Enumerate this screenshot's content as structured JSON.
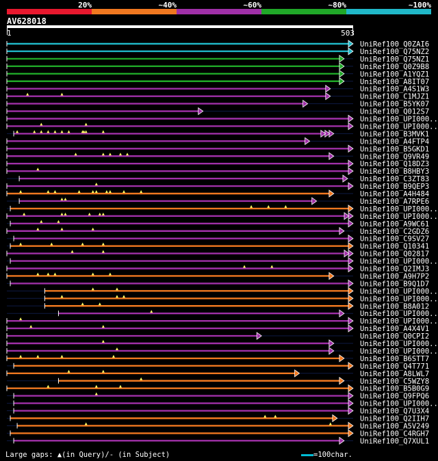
{
  "legend": {
    "segments": [
      {
        "label": "20%",
        "color": "#e8182e"
      },
      {
        "label": "~40%",
        "color": "#f07820"
      },
      {
        "label": "~60%",
        "color": "#a030a8"
      },
      {
        "label": "~80%",
        "color": "#20a828"
      },
      {
        "label": "~100%",
        "color": "#20b8c8"
      }
    ]
  },
  "query": {
    "name": "AV628018",
    "start_label": "1",
    "end_label": "503",
    "length": 503
  },
  "footer": {
    "gaps_text": "Large gaps: ▲(in Query)/- (in Subject)",
    "scale_text": "=100char."
  },
  "hits": [
    {
      "label": "UniRef100_Q0ZAI6",
      "start": 0,
      "end": 503,
      "color": "#20b8c8",
      "heads": 1,
      "gaps": []
    },
    {
      "label": "UniRef100_Q75NZ2",
      "start": 0,
      "end": 503,
      "color": "#20b8c8",
      "heads": 1,
      "gaps": []
    },
    {
      "label": "UniRef100_Q75NZ1",
      "start": 0,
      "end": 490,
      "color": "#20a828",
      "heads": 1,
      "gaps": []
    },
    {
      "label": "UniRef100_Q0Z9B8",
      "start": 0,
      "end": 490,
      "color": "#20a828",
      "heads": 1,
      "gaps": []
    },
    {
      "label": "UniRef100_A1YQZ1",
      "start": 0,
      "end": 490,
      "color": "#20a828",
      "heads": 1,
      "gaps": []
    },
    {
      "label": "UniRef100_A8IT07",
      "start": 0,
      "end": 490,
      "color": "#20a828",
      "heads": 1,
      "gaps": []
    },
    {
      "label": "UniRef100_A4S1W3",
      "start": 0,
      "end": 470,
      "color": "#a030a8",
      "heads": 1,
      "gaps": []
    },
    {
      "label": "UniRef100_C1MJZ1",
      "start": 0,
      "end": 470,
      "color": "#a030a8",
      "heads": 1,
      "gaps": [
        30,
        80
      ]
    },
    {
      "label": "UniRef100_B5YK07",
      "start": 0,
      "end": 437,
      "color": "#a030a8",
      "heads": 1,
      "gaps": []
    },
    {
      "label": "UniRef100_Q012S7",
      "start": 0,
      "end": 285,
      "color": "#a030a8",
      "heads": 1,
      "gaps": []
    },
    {
      "label": "UniRef100_UPI000..",
      "start": 0,
      "end": 503,
      "color": "#a030a8",
      "heads": 1,
      "gaps": []
    },
    {
      "label": "UniRef100_UPI000..",
      "start": 0,
      "end": 503,
      "color": "#a030a8",
      "heads": 1,
      "gaps": [
        50,
        115
      ]
    },
    {
      "label": "UniRef100_B3MVK1",
      "start": 10,
      "end": 475,
      "color": "#a030a8",
      "heads": 3,
      "gaps": [
        15,
        40,
        50,
        60,
        70,
        80,
        90,
        110,
        112,
        115,
        140
      ]
    },
    {
      "label": "UniRef100_A4FTP4",
      "start": 0,
      "end": 440,
      "color": "#a030a8",
      "heads": 1,
      "gaps": []
    },
    {
      "label": "UniRef100_B5GKD1",
      "start": 0,
      "end": 503,
      "color": "#a030a8",
      "heads": 1,
      "gaps": []
    },
    {
      "label": "UniRef100_Q9VR49",
      "start": 0,
      "end": 475,
      "color": "#a030a8",
      "heads": 1,
      "gaps": [
        100,
        140,
        150,
        165,
        175
      ]
    },
    {
      "label": "UniRef100_Q18DZ3",
      "start": 0,
      "end": 503,
      "color": "#a030a8",
      "heads": 1,
      "gaps": []
    },
    {
      "label": "UniRef100_B8HBY3",
      "start": 0,
      "end": 503,
      "color": "#a030a8",
      "heads": 1,
      "gaps": [
        45
      ]
    },
    {
      "label": "UniRef100_C3ZT83",
      "start": 18,
      "end": 495,
      "color": "#a030a8",
      "heads": 1,
      "gaps": []
    },
    {
      "label": "UniRef100_B9QEP3",
      "start": 0,
      "end": 503,
      "color": "#a030a8",
      "heads": 1,
      "gaps": [
        130
      ]
    },
    {
      "label": "UniRef100_A4H484",
      "start": 0,
      "end": 475,
      "color": "#f07820",
      "heads": 1,
      "gaps": [
        20,
        60,
        70,
        105,
        125,
        130,
        145,
        150,
        170,
        195
      ]
    },
    {
      "label": "UniRef100_A7RPE6",
      "start": 18,
      "end": 450,
      "color": "#a030a8",
      "heads": 1,
      "gaps": [
        80,
        85
      ]
    },
    {
      "label": "UniRef100_UPI000..",
      "start": 5,
      "end": 503,
      "color": "#f07820",
      "heads": 1,
      "gaps": [
        355,
        380,
        405
      ]
    },
    {
      "label": "UniRef100_UPI000..",
      "start": 0,
      "end": 503,
      "color": "#a030a8",
      "heads": 2,
      "gaps": [
        25,
        80,
        85,
        120,
        135,
        140
      ]
    },
    {
      "label": "UniRef100_A9WC61",
      "start": 5,
      "end": 503,
      "color": "#a030a8",
      "heads": 1,
      "gaps": [
        50,
        75
      ]
    },
    {
      "label": "UniRef100_C2GDZ6",
      "start": 0,
      "end": 490,
      "color": "#a030a8",
      "heads": 1,
      "gaps": [
        45,
        80,
        125
      ]
    },
    {
      "label": "UniRef100_C9SV27",
      "start": 10,
      "end": 503,
      "color": "#a030a8",
      "heads": 1,
      "gaps": []
    },
    {
      "label": "UniRef100_Q10341",
      "start": 5,
      "end": 503,
      "color": "#f07820",
      "heads": 1,
      "gaps": [
        20,
        65,
        110,
        140
      ]
    },
    {
      "label": "UniRef100_Q02817",
      "start": 0,
      "end": 503,
      "color": "#a030a8",
      "heads": 2,
      "gaps": [
        95,
        140
      ]
    },
    {
      "label": "UniRef100_UPI000..",
      "start": 5,
      "end": 503,
      "color": "#a030a8",
      "heads": 1,
      "gaps": []
    },
    {
      "label": "UniRef100_Q2IMJ3",
      "start": 0,
      "end": 503,
      "color": "#a030a8",
      "heads": 1,
      "gaps": [
        345,
        385
      ]
    },
    {
      "label": "UniRef100_A9H7P2",
      "start": 0,
      "end": 475,
      "color": "#f07820",
      "heads": 1,
      "gaps": [
        45,
        60,
        70,
        125,
        150
      ]
    },
    {
      "label": "UniRef100_B9Q1D7",
      "start": 5,
      "end": 503,
      "color": "#a030a8",
      "heads": 1,
      "gaps": []
    },
    {
      "label": "UniRef100_UPI000..",
      "start": 55,
      "end": 503,
      "color": "#f07820",
      "heads": 1,
      "gaps": [
        125,
        160
      ]
    },
    {
      "label": "UniRef100_UPI000..",
      "start": 55,
      "end": 503,
      "color": "#f07820",
      "heads": 1,
      "gaps": [
        80,
        160,
        170
      ]
    },
    {
      "label": "UniRef100_B8A012",
      "start": 55,
      "end": 503,
      "color": "#f07820",
      "heads": 1,
      "gaps": [
        110,
        135
      ]
    },
    {
      "label": "UniRef100_UPI000..",
      "start": 75,
      "end": 490,
      "color": "#a030a8",
      "heads": 1,
      "gaps": [
        210
      ]
    },
    {
      "label": "UniRef100_UPI000..",
      "start": 0,
      "end": 503,
      "color": "#a030a8",
      "heads": 1,
      "gaps": [
        20
      ]
    },
    {
      "label": "UniRef100_A4X4V1",
      "start": 0,
      "end": 503,
      "color": "#a030a8",
      "heads": 1,
      "gaps": [
        35,
        140
      ]
    },
    {
      "label": "UniRef100_Q0CPI2",
      "start": 0,
      "end": 370,
      "color": "#a030a8",
      "heads": 1,
      "gaps": []
    },
    {
      "label": "UniRef100_UPI000..",
      "start": 0,
      "end": 475,
      "color": "#a030a8",
      "heads": 1,
      "gaps": [
        140
      ]
    },
    {
      "label": "UniRef100_UPI000..",
      "start": 0,
      "end": 475,
      "color": "#a030a8",
      "heads": 1,
      "gaps": [
        160
      ]
    },
    {
      "label": "UniRef100_B6STT7",
      "start": 0,
      "end": 490,
      "color": "#f07820",
      "heads": 1,
      "gaps": [
        20,
        45,
        80,
        155
      ]
    },
    {
      "label": "UniRef100_Q4T771",
      "start": 10,
      "end": 503,
      "color": "#f07820",
      "heads": 1,
      "gaps": []
    },
    {
      "label": "UniRef100_A8LWL7",
      "start": 0,
      "end": 425,
      "color": "#f07820",
      "heads": 1,
      "gaps": [
        90,
        140
      ]
    },
    {
      "label": "UniRef100_C5WZY8",
      "start": 75,
      "end": 490,
      "color": "#f07820",
      "heads": 1,
      "gaps": [
        195
      ]
    },
    {
      "label": "UniRef100_B5B0G9",
      "start": 0,
      "end": 503,
      "color": "#f07820",
      "heads": 1,
      "gaps": [
        60,
        130,
        165
      ]
    },
    {
      "label": "UniRef100_Q9FPQ6",
      "start": 10,
      "end": 503,
      "color": "#a030a8",
      "heads": 1,
      "gaps": [
        130
      ]
    },
    {
      "label": "UniRef100_UPI000..",
      "start": 10,
      "end": 503,
      "color": "#a030a8",
      "heads": 1,
      "gaps": []
    },
    {
      "label": "UniRef100_Q7U3X4",
      "start": 10,
      "end": 503,
      "color": "#a030a8",
      "heads": 1,
      "gaps": []
    },
    {
      "label": "UniRef100_Q2IIH7",
      "start": 5,
      "end": 480,
      "color": "#f07820",
      "heads": 1,
      "gaps": [
        375,
        390
      ]
    },
    {
      "label": "UniRef100_A5V249",
      "start": 15,
      "end": 503,
      "color": "#f07820",
      "heads": 1,
      "gaps": [
        115,
        470
      ]
    },
    {
      "label": "UniRef100_C4RGH7",
      "start": 5,
      "end": 503,
      "color": "#f07820",
      "heads": 1,
      "gaps": []
    },
    {
      "label": "UniRef100_Q7XUL1",
      "start": 10,
      "end": 490,
      "color": "#a030a8",
      "heads": 1,
      "gaps": []
    }
  ]
}
